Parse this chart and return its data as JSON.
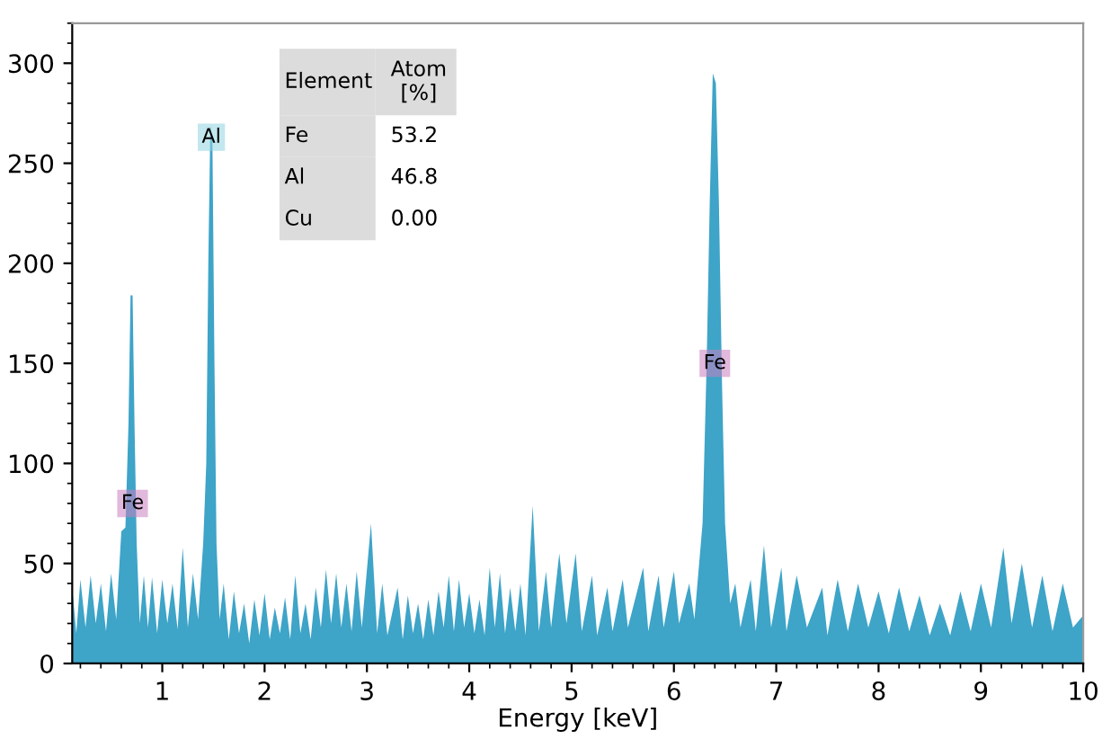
{
  "chart_data": {
    "type": "area",
    "xlabel": "Energy [keV]",
    "x": [
      0.12,
      0.16,
      0.2,
      0.25,
      0.3,
      0.35,
      0.4,
      0.45,
      0.5,
      0.55,
      0.6,
      0.64,
      0.67,
      0.69,
      0.71,
      0.73,
      0.75,
      0.78,
      0.82,
      0.86,
      0.9,
      0.95,
      1.0,
      1.05,
      1.1,
      1.15,
      1.2,
      1.25,
      1.3,
      1.35,
      1.4,
      1.43,
      1.45,
      1.47,
      1.49,
      1.51,
      1.53,
      1.56,
      1.6,
      1.65,
      1.7,
      1.75,
      1.8,
      1.85,
      1.9,
      1.95,
      2.0,
      2.05,
      2.1,
      2.15,
      2.2,
      2.25,
      2.3,
      2.35,
      2.4,
      2.45,
      2.5,
      2.55,
      2.6,
      2.65,
      2.7,
      2.75,
      2.8,
      2.85,
      2.9,
      2.95,
      3.04,
      3.1,
      3.15,
      3.2,
      3.3,
      3.35,
      3.4,
      3.45,
      3.5,
      3.55,
      3.6,
      3.65,
      3.7,
      3.75,
      3.8,
      3.85,
      3.9,
      3.95,
      4.0,
      4.05,
      4.1,
      4.15,
      4.2,
      4.25,
      4.3,
      4.35,
      4.4,
      4.45,
      4.5,
      4.55,
      4.62,
      4.68,
      4.75,
      4.8,
      4.88,
      4.95,
      5.04,
      5.1,
      5.2,
      5.25,
      5.35,
      5.4,
      5.5,
      5.55,
      5.7,
      5.75,
      5.85,
      5.9,
      6.0,
      6.05,
      6.15,
      6.2,
      6.28,
      6.32,
      6.35,
      6.38,
      6.41,
      6.44,
      6.47,
      6.5,
      6.55,
      6.6,
      6.65,
      6.75,
      6.8,
      6.88,
      6.95,
      7.05,
      7.1,
      7.2,
      7.3,
      7.45,
      7.5,
      7.6,
      7.7,
      7.8,
      7.9,
      8.0,
      8.1,
      8.2,
      8.3,
      8.4,
      8.5,
      8.6,
      8.7,
      8.8,
      8.9,
      9.0,
      9.1,
      9.22,
      9.3,
      9.4,
      9.5,
      9.6,
      9.7,
      9.8,
      9.9,
      10.0
    ],
    "series": [
      {
        "color": "#3ea4c8",
        "values": [
          38,
          15,
          42,
          18,
          44,
          20,
          40,
          16,
          45,
          22,
          66,
          68,
          120,
          184,
          184,
          116,
          60,
          20,
          44,
          18,
          43,
          15,
          42,
          20,
          40,
          17,
          58,
          18,
          45,
          22,
          60,
          100,
          200,
          269,
          262,
          150,
          60,
          22,
          40,
          12,
          36,
          15,
          30,
          10,
          32,
          14,
          35,
          12,
          28,
          15,
          33,
          12,
          44,
          15,
          30,
          12,
          38,
          18,
          47,
          20,
          45,
          18,
          40,
          16,
          46,
          18,
          70,
          15,
          40,
          14,
          38,
          12,
          34,
          15,
          30,
          12,
          32,
          14,
          36,
          18,
          44,
          16,
          42,
          18,
          35,
          15,
          32,
          14,
          48,
          18,
          45,
          15,
          38,
          16,
          40,
          14,
          79,
          16,
          46,
          18,
          55,
          20,
          55,
          16,
          44,
          14,
          38,
          16,
          42,
          18,
          48,
          16,
          44,
          18,
          46,
          20,
          40,
          22,
          70,
          150,
          230,
          295,
          290,
          230,
          140,
          70,
          30,
          40,
          18,
          42,
          16,
          59,
          18,
          48,
          16,
          44,
          18,
          38,
          14,
          42,
          16,
          40,
          18,
          36,
          15,
          38,
          16,
          34,
          14,
          30,
          14,
          36,
          16,
          40,
          18,
          58,
          20,
          50,
          18,
          44,
          16,
          40,
          18,
          24
        ]
      }
    ],
    "xlim": [
      0.12,
      10
    ],
    "xticks": [
      1,
      2,
      3,
      4,
      5,
      6,
      7,
      8,
      9,
      10
    ],
    "ylim": [
      0,
      320
    ],
    "yticks": [
      0,
      50,
      100,
      150,
      200,
      250,
      300
    ],
    "grid": false,
    "annotations": [
      "Element",
      "Atom\n[%]",
      "Fe",
      "53.2",
      "Al",
      "46.8",
      "Cu",
      "0.00",
      {
        "text": "Al",
        "x": 1.48,
        "y": 263
      },
      {
        "text": "Fe",
        "x": 0.71,
        "y": 80
      },
      {
        "text": "Fe",
        "x": 6.4,
        "y": 150
      }
    ]
  }
}
